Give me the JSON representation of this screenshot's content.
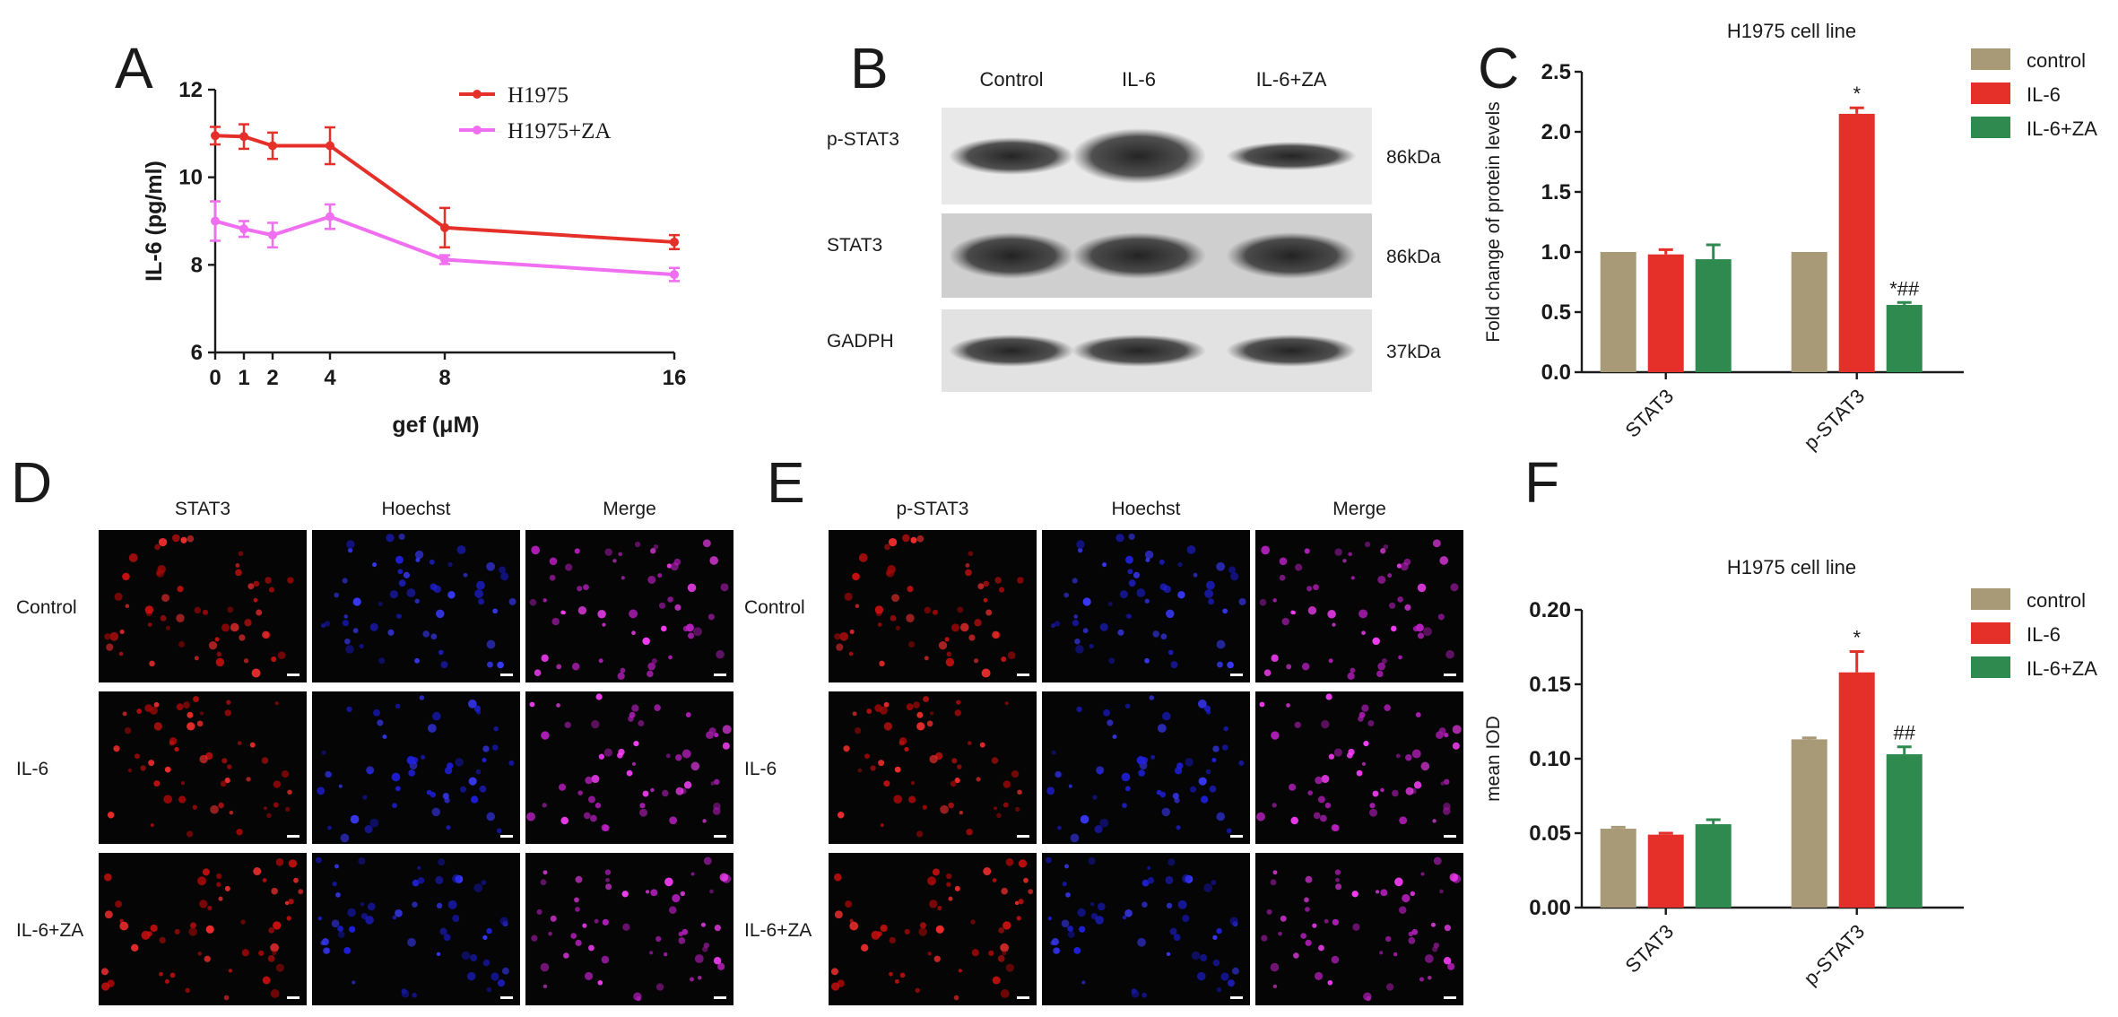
{
  "panels": {
    "A": "A",
    "B": "B",
    "C": "C",
    "D": "D",
    "E": "E",
    "F": "F"
  },
  "chart_data": [
    {
      "panel": "A",
      "type": "line",
      "title": "",
      "xlabel": "gef (μM)",
      "ylabel": "IL-6 (pg/ml)",
      "xlim": [
        0,
        16
      ],
      "ylim": [
        6,
        12
      ],
      "xticks": [
        "0",
        "1",
        "2",
        "4",
        "8",
        "16"
      ],
      "yticks": [
        "6",
        "8",
        "10",
        "12"
      ],
      "legend_position": "top-right",
      "x": [
        0,
        1,
        2,
        4,
        8,
        16
      ],
      "series": [
        {
          "name": "H1975",
          "color": "#e5302a",
          "values": [
            10.95,
            10.93,
            10.72,
            10.72,
            8.85,
            8.52
          ],
          "errors": [
            0.2,
            0.28,
            0.3,
            0.42,
            0.45,
            0.16
          ]
        },
        {
          "name": "H1975+ZA",
          "color": "#f06ef0",
          "values": [
            9.0,
            8.82,
            8.68,
            9.1,
            8.12,
            7.78
          ],
          "errors": [
            0.45,
            0.18,
            0.28,
            0.28,
            0.1,
            0.15
          ]
        }
      ]
    },
    {
      "panel": "C",
      "type": "bar",
      "title": "H1975 cell line",
      "xlabel": "",
      "ylabel": "Fold change of protein levels",
      "categories": [
        "STAT3",
        "p-STAT3"
      ],
      "ylim": [
        0,
        2.5
      ],
      "yticks": [
        "0.0",
        "0.5",
        "1.0",
        "1.5",
        "2.0",
        "2.5"
      ],
      "legend_position": "top-right",
      "series": [
        {
          "name": "control",
          "color": "#a89a76",
          "values": [
            1.0,
            1.0
          ],
          "errors": [
            0,
            0
          ],
          "marks": [
            "",
            ""
          ]
        },
        {
          "name": "IL-6",
          "color": "#e5302a",
          "values": [
            0.98,
            2.15
          ],
          "errors": [
            0.04,
            0.05
          ],
          "marks": [
            "",
            "*"
          ]
        },
        {
          "name": "IL-6+ZA",
          "color": "#2f8a50",
          "values": [
            0.94,
            0.56
          ],
          "errors": [
            0.12,
            0.02
          ],
          "marks": [
            "",
            "*##"
          ]
        }
      ]
    },
    {
      "panel": "F",
      "type": "bar",
      "title": "H1975 cell line",
      "xlabel": "",
      "ylabel": "mean IOD",
      "categories": [
        "STAT3",
        "p-STAT3"
      ],
      "ylim": [
        0,
        0.2
      ],
      "yticks": [
        "0.00",
        "0.05",
        "0.10",
        "0.15",
        "0.20"
      ],
      "legend_position": "top-right",
      "series": [
        {
          "name": "control",
          "color": "#a89a76",
          "values": [
            0.053,
            0.113
          ],
          "errors": [
            0.001,
            0.001
          ],
          "marks": [
            "",
            ""
          ]
        },
        {
          "name": "IL-6",
          "color": "#e5302a",
          "values": [
            0.049,
            0.158
          ],
          "errors": [
            0.001,
            0.014
          ],
          "marks": [
            "",
            "*"
          ]
        },
        {
          "name": "IL-6+ZA",
          "color": "#2f8a50",
          "values": [
            0.056,
            0.103
          ],
          "errors": [
            0.003,
            0.005
          ],
          "marks": [
            "",
            "##"
          ]
        }
      ]
    }
  ],
  "blot": {
    "columns": [
      "Control",
      "IL-6",
      "IL-6+ZA"
    ],
    "rows": [
      {
        "label": "p-STAT3",
        "size": "86kDa"
      },
      {
        "label": "STAT3",
        "size": "86kDa"
      },
      {
        "label": "GADPH",
        "size": "37kDa"
      }
    ]
  },
  "micrographs_D": {
    "columns": [
      "STAT3",
      "Hoechst",
      "Merge"
    ],
    "rows": [
      "Control",
      "IL-6",
      "IL-6+ZA"
    ]
  },
  "micrographs_E": {
    "columns": [
      "p-STAT3",
      "Hoechst",
      "Merge"
    ],
    "rows": [
      "Control",
      "IL-6",
      "IL-6+ZA"
    ]
  }
}
